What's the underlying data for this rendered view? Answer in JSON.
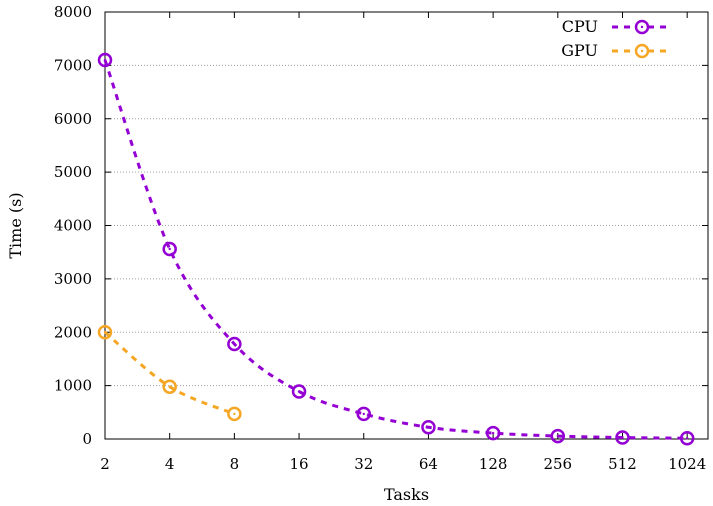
{
  "chart_data": {
    "type": "line",
    "title": "",
    "xlabel": "Tasks",
    "ylabel": "Time (s)",
    "x_scale": "log2",
    "x_ticks": [
      2,
      4,
      8,
      16,
      32,
      64,
      128,
      256,
      512,
      1024
    ],
    "y_ticks": [
      0,
      1000,
      2000,
      3000,
      4000,
      5000,
      6000,
      7000,
      8000
    ],
    "xlim": [
      2,
      1280
    ],
    "ylim": [
      0,
      8000
    ],
    "grid": "horizontal dotted",
    "legend_position": "top-right",
    "series": [
      {
        "name": "CPU",
        "color": "#9400d3",
        "marker": "circle-with-dot",
        "line_style": "dashed",
        "x": [
          2,
          4,
          8,
          16,
          32,
          64,
          128,
          256,
          512,
          1024
        ],
        "values": [
          7100,
          3560,
          1780,
          890,
          470,
          220,
          110,
          55,
          28,
          14
        ]
      },
      {
        "name": "GPU",
        "color": "#f5a623",
        "marker": "circle-with-dot",
        "line_style": "dashed",
        "x": [
          2,
          4,
          8
        ],
        "values": [
          2000,
          980,
          470
        ]
      }
    ]
  }
}
